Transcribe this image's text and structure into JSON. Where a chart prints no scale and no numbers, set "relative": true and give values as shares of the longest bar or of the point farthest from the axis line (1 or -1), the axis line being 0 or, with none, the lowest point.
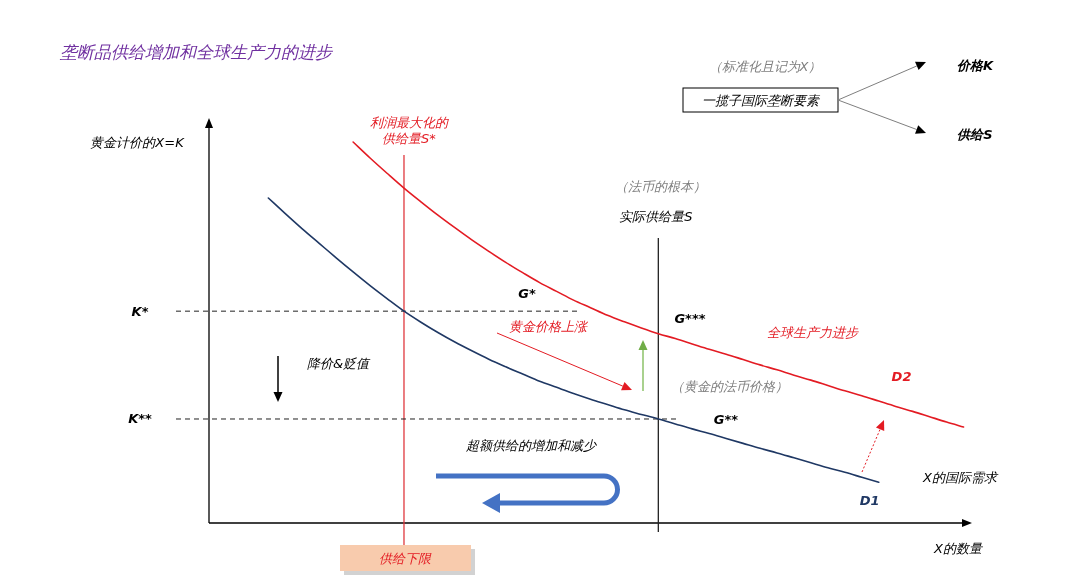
{
  "chart_data": {
    "type": "line",
    "title": "垄断品供给增加和全球生产力的进步",
    "xlabel": "X的数量",
    "ylabel": "黄金计价的X=K",
    "relative": true,
    "categories": [
      null,
      null,
      null,
      null,
      null,
      null,
      null,
      null,
      null,
      null,
      null,
      null,
      null,
      null,
      null,
      null,
      null,
      null,
      null,
      null,
      null,
      null,
      null,
      null,
      null,
      null,
      null,
      null,
      null,
      null,
      null,
      null,
      null,
      null,
      null,
      null,
      null,
      null,
      null,
      null,
      null,
      null,
      null,
      null,
      null
    ],
    "series": [
      {
        "name": "D1",
        "color": "#1f3864",
        "values": [
          null,
          null,
          null,
          0.853,
          0.812,
          0.772,
          0.734,
          0.696,
          0.659,
          0.623,
          0.589,
          0.556,
          0.527,
          0.5,
          0.475,
          0.452,
          0.43,
          0.41,
          0.391,
          0.372,
          0.356,
          0.34,
          0.325,
          0.311,
          0.297,
          0.285,
          0.273,
          0.26,
          0.247,
          0.235,
          0.222,
          0.209,
          0.196,
          0.184,
          0.171,
          0.158,
          0.145,
          0.133,
          0.12,
          0.107,
          null,
          null,
          null,
          null,
          null
        ]
      },
      {
        "name": "D2",
        "color": "#e31b23",
        "values": [
          null,
          null,
          null,
          null,
          null,
          null,
          null,
          null,
          1.0,
          0.958,
          0.918,
          0.879,
          0.843,
          0.808,
          0.775,
          0.743,
          0.713,
          0.684,
          0.657,
          0.631,
          0.608,
          0.585,
          0.565,
          0.545,
          0.528,
          0.512,
          0.497,
          0.484,
          0.47,
          0.456,
          0.443,
          0.429,
          0.415,
          0.402,
          0.388,
          0.375,
          0.361,
          0.347,
          0.334,
          0.32,
          0.306,
          0.293,
          0.279,
          0.265,
          0.252
        ]
      }
    ],
    "ref_lines": [
      {
        "axis": "y",
        "value": 0.556,
        "label": "K*",
        "color": "#222222",
        "line_style": "dashed"
      },
      {
        "axis": "y",
        "value": 0.273,
        "label": "K**",
        "color": "#222222",
        "line_style": "dashed"
      }
    ],
    "annotations": [
      "（标准化且记为X）",
      "一揽子国际垄断要素",
      "价格K",
      "利润最大化的供给量S*",
      "供给S",
      "（法币的根本）",
      "实际供给量S",
      "G*",
      "G***",
      "黄金价格上涨",
      "全球生产力进步",
      "降价&贬值",
      "（黄金的法币价格）",
      "G**",
      "超额供给的增加和减少",
      "X的国际需求",
      "供给下限"
    ]
  }
}
